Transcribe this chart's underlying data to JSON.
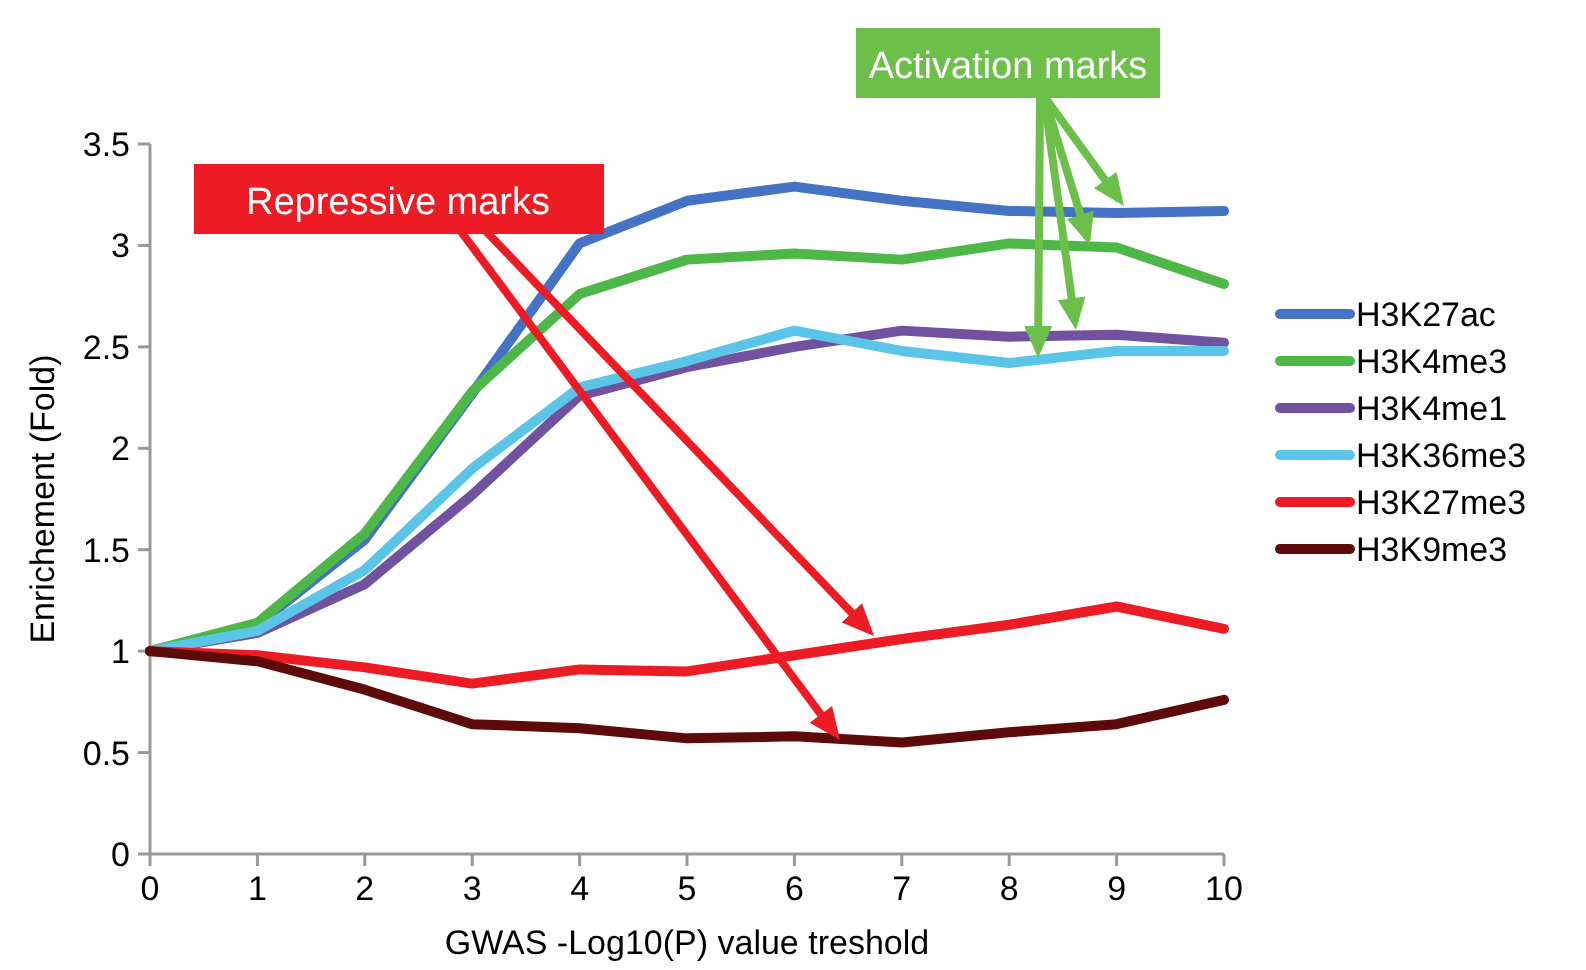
{
  "chart_data": {
    "type": "line",
    "xlabel": "GWAS -Log10(P) value treshold",
    "ylabel": "Enrichement (Fold)",
    "x": [
      0,
      1,
      2,
      3,
      4,
      5,
      6,
      7,
      8,
      9,
      10
    ],
    "xlim": [
      0,
      10
    ],
    "xticks": [
      0,
      1,
      2,
      3,
      4,
      5,
      6,
      7,
      8,
      9,
      10
    ],
    "ylim": [
      0,
      3.5
    ],
    "yticks": [
      0,
      0.5,
      1,
      1.5,
      2,
      2.5,
      3,
      3.5
    ],
    "grid": false,
    "legend": "right",
    "marker": "none",
    "line_style": "solid",
    "annotations": [
      "Repressive marks",
      {
        "text": "Activation marks",
        "x": 8.75,
        "y": 3.0
      }
    ],
    "series": [
      {
        "name": "H3K27ac",
        "color": "#4472c4",
        "values": [
          1,
          1.13,
          1.55,
          2.27,
          3.01,
          3.22,
          3.29,
          3.22,
          3.17,
          3.16,
          3.17
        ]
      },
      {
        "name": "H3K4me3",
        "color": "#4db848",
        "values": [
          1,
          1.14,
          1.58,
          2.28,
          2.76,
          2.93,
          2.96,
          2.93,
          3.01,
          2.99,
          2.81
        ]
      },
      {
        "name": "H3K4me1",
        "color": "#7052a0",
        "values": [
          1,
          1.09,
          1.33,
          1.77,
          2.26,
          2.4,
          2.5,
          2.58,
          2.55,
          2.56,
          2.52
        ]
      },
      {
        "name": "H3K36me3",
        "color": "#5bc5e8",
        "values": [
          1,
          1.1,
          1.4,
          1.9,
          2.3,
          2.43,
          2.58,
          2.48,
          2.42,
          2.48,
          2.48
        ]
      },
      {
        "name": "H3K27me3",
        "color": "#ed1c24",
        "values": [
          1,
          0.98,
          0.92,
          0.84,
          0.91,
          0.9,
          0.98,
          1.06,
          1.13,
          1.22,
          1.11
        ]
      },
      {
        "name": "H3K9me3",
        "color": "#5c0a0a",
        "values": [
          1,
          0.95,
          0.81,
          0.64,
          0.62,
          0.57,
          0.58,
          0.55,
          0.6,
          0.64,
          0.76
        ]
      }
    ]
  }
}
